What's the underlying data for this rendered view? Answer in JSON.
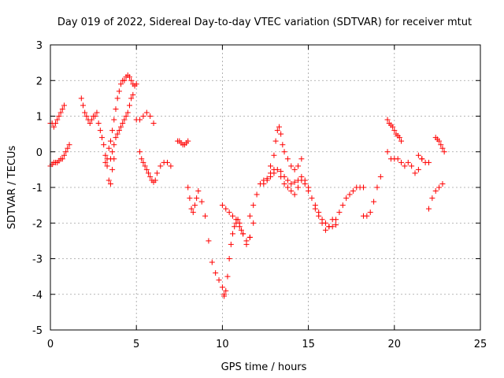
{
  "chart_data": {
    "type": "scatter",
    "title": "Day 019 of 2022, Sidereal Day-to-day VTEC variation (SDTVAR) for receiver mtut",
    "xlabel": "GPS time / hours",
    "ylabel": "SDTVAR / TECUs",
    "xlim": [
      0,
      25
    ],
    "ylim": [
      -5,
      3
    ],
    "xticks": [
      0,
      5,
      10,
      15,
      20,
      25
    ],
    "yticks": [
      -5,
      -4,
      -3,
      -2,
      -1,
      0,
      1,
      2,
      3
    ],
    "grid": true,
    "marker": "+",
    "color": "#ff0000",
    "series": [
      {
        "name": "SDTVAR",
        "x": [
          0.0,
          0.1,
          0.2,
          0.3,
          0.4,
          0.5,
          0.6,
          0.7,
          0.8,
          0.9,
          1.0,
          1.1,
          1.2,
          1.3,
          1.4,
          1.5,
          0.0,
          0.1,
          0.2,
          0.3,
          0.4,
          0.5,
          0.6,
          0.7,
          0.8,
          0.9,
          1.0,
          1.1,
          1.8,
          1.9,
          2.0,
          2.1,
          2.2,
          2.3,
          2.4,
          2.5,
          2.6,
          2.7,
          2.8,
          2.9,
          3.0,
          3.1,
          3.2,
          3.3,
          3.4,
          3.5,
          3.6,
          3.7,
          3.2,
          3.3,
          3.4,
          3.5,
          3.6,
          3.7,
          3.8,
          3.9,
          4.0,
          4.1,
          4.2,
          4.3,
          4.4,
          4.5,
          4.6,
          4.7,
          4.8,
          4.9,
          5.0,
          3.5,
          3.6,
          3.7,
          3.8,
          3.9,
          4.0,
          4.1,
          4.2,
          4.3,
          4.4,
          4.5,
          4.6,
          4.7,
          4.8,
          5.0,
          5.2,
          5.4,
          5.6,
          5.8,
          6.0,
          5.2,
          5.3,
          5.4,
          5.5,
          5.6,
          5.7,
          5.8,
          5.9,
          6.0,
          6.1,
          6.2,
          6.4,
          6.6,
          6.8,
          7.0,
          7.4,
          7.5,
          7.6,
          7.7,
          7.8,
          7.9,
          8.0,
          8.0,
          8.1,
          8.2,
          8.3,
          8.4,
          8.5,
          8.6,
          8.8,
          9.0,
          9.2,
          9.4,
          9.6,
          9.8,
          10.0,
          10.1,
          10.1,
          10.2,
          10.3,
          10.4,
          10.5,
          10.6,
          10.7,
          10.8,
          10.9,
          11.0,
          11.1,
          11.2,
          11.4,
          11.6,
          10.0,
          10.2,
          10.4,
          10.6,
          10.8,
          11.0,
          11.2,
          11.4,
          11.6,
          11.8,
          11.6,
          11.8,
          12.0,
          12.2,
          12.4,
          12.6,
          12.8,
          13.0,
          12.4,
          12.6,
          12.8,
          13.0,
          13.2,
          13.4,
          13.6,
          13.8,
          14.0,
          14.2,
          14.4,
          14.6,
          14.8,
          15.0,
          12.8,
          13.0,
          13.1,
          13.2,
          13.3,
          13.4,
          13.5,
          13.6,
          13.8,
          14.0,
          14.2,
          14.4,
          14.6,
          13.4,
          13.6,
          13.8,
          14.0,
          14.2,
          14.4,
          14.6,
          14.8,
          15.0,
          15.2,
          15.4,
          15.6,
          15.8,
          16.0,
          16.2,
          16.4,
          16.6,
          15.4,
          15.6,
          15.8,
          16.0,
          16.2,
          16.4,
          16.6,
          16.8,
          17.0,
          17.2,
          17.4,
          17.6,
          17.8,
          18.0,
          18.2,
          18.2,
          18.4,
          18.6,
          18.8,
          19.0,
          19.2,
          19.6,
          19.7,
          19.8,
          19.9,
          20.0,
          20.1,
          20.2,
          20.3,
          20.4,
          19.6,
          19.8,
          20.0,
          20.2,
          20.4,
          20.6,
          20.8,
          21.0,
          21.2,
          21.4,
          21.6,
          21.4,
          21.6,
          21.8,
          22.0,
          22.0,
          22.2,
          22.4,
          22.6,
          22.8,
          22.4,
          22.5,
          22.6,
          22.7,
          22.8,
          22.9
        ],
        "y": [
          0.8,
          0.8,
          0.7,
          0.8,
          0.9,
          1.0,
          1.1,
          1.2,
          1.3,
          null,
          null,
          null,
          null,
          null,
          null,
          null,
          -0.4,
          -0.35,
          -0.3,
          -0.3,
          -0.3,
          -0.25,
          -0.2,
          -0.2,
          -0.1,
          0.0,
          0.1,
          0.2,
          1.5,
          1.3,
          1.1,
          1.0,
          0.9,
          0.8,
          0.9,
          1.0,
          1.0,
          1.1,
          0.8,
          0.6,
          0.4,
          0.2,
          -0.1,
          -0.4,
          -0.8,
          -0.9,
          -0.5,
          -0.2,
          -0.3,
          -0.2,
          0.1,
          0.3,
          0.6,
          0.9,
          1.2,
          1.5,
          1.7,
          1.9,
          2.0,
          2.0,
          2.1,
          2.15,
          2.1,
          2.0,
          1.9,
          1.85,
          1.9,
          -0.2,
          0.0,
          0.2,
          0.4,
          0.5,
          0.6,
          0.7,
          0.8,
          0.9,
          1.0,
          1.1,
          1.3,
          1.5,
          1.6,
          0.9,
          0.9,
          1.0,
          1.1,
          1.0,
          0.8,
          0.0,
          -0.2,
          -0.3,
          -0.4,
          -0.5,
          -0.6,
          -0.7,
          -0.8,
          -0.85,
          -0.8,
          -0.6,
          -0.4,
          -0.3,
          -0.3,
          -0.4,
          0.3,
          0.3,
          0.25,
          0.2,
          0.2,
          0.25,
          0.3,
          -1.0,
          -1.3,
          -1.6,
          -1.7,
          -1.5,
          -1.3,
          -1.1,
          -1.4,
          -1.8,
          -2.5,
          -3.1,
          -3.4,
          -3.6,
          -3.8,
          -4.0,
          -4.05,
          -3.9,
          -3.5,
          -3.0,
          -2.6,
          -2.3,
          -2.1,
          -2.0,
          -1.9,
          -2.0,
          -2.2,
          -2.3,
          -2.5,
          -2.4,
          -1.5,
          -1.6,
          -1.7,
          -1.8,
          -1.9,
          -2.1,
          -2.3,
          -2.6,
          -2.4,
          -2.0,
          -1.8,
          -1.5,
          -1.2,
          -0.9,
          -0.8,
          -0.75,
          -0.7,
          -0.6,
          -0.9,
          -0.8,
          -0.6,
          -0.5,
          -0.5,
          -0.55,
          -0.7,
          -0.8,
          -0.9,
          -0.85,
          -0.8,
          -0.7,
          -0.8,
          -1.0,
          -0.4,
          -0.1,
          0.3,
          0.6,
          0.7,
          0.5,
          0.2,
          0.0,
          -0.2,
          -0.4,
          -0.5,
          -0.4,
          -0.2,
          -0.7,
          -0.9,
          -1.0,
          -1.1,
          -1.2,
          -1.0,
          -0.8,
          -0.9,
          -1.1,
          -1.3,
          -1.5,
          -1.7,
          -1.9,
          -2.0,
          -2.1,
          -2.1,
          -2.05,
          -1.6,
          -1.8,
          -2.0,
          -2.2,
          -2.1,
          -1.9,
          -1.9,
          -1.7,
          -1.5,
          -1.3,
          -1.2,
          -1.1,
          -1.0,
          -1.0,
          -1.0,
          -1.8,
          -1.8,
          -1.7,
          -1.4,
          -1.0,
          -0.7,
          0.9,
          0.8,
          0.75,
          0.7,
          0.6,
          0.5,
          0.45,
          0.4,
          0.3,
          0.0,
          -0.2,
          -0.2,
          -0.2,
          -0.3,
          -0.4,
          -0.3,
          -0.4,
          -0.6,
          -0.5,
          -0.2,
          -0.1,
          -0.2,
          -0.3,
          -0.3,
          -1.6,
          -1.3,
          -1.1,
          -1.0,
          -0.9,
          0.4,
          0.35,
          0.3,
          0.2,
          0.1,
          0.0
        ]
      }
    ]
  }
}
